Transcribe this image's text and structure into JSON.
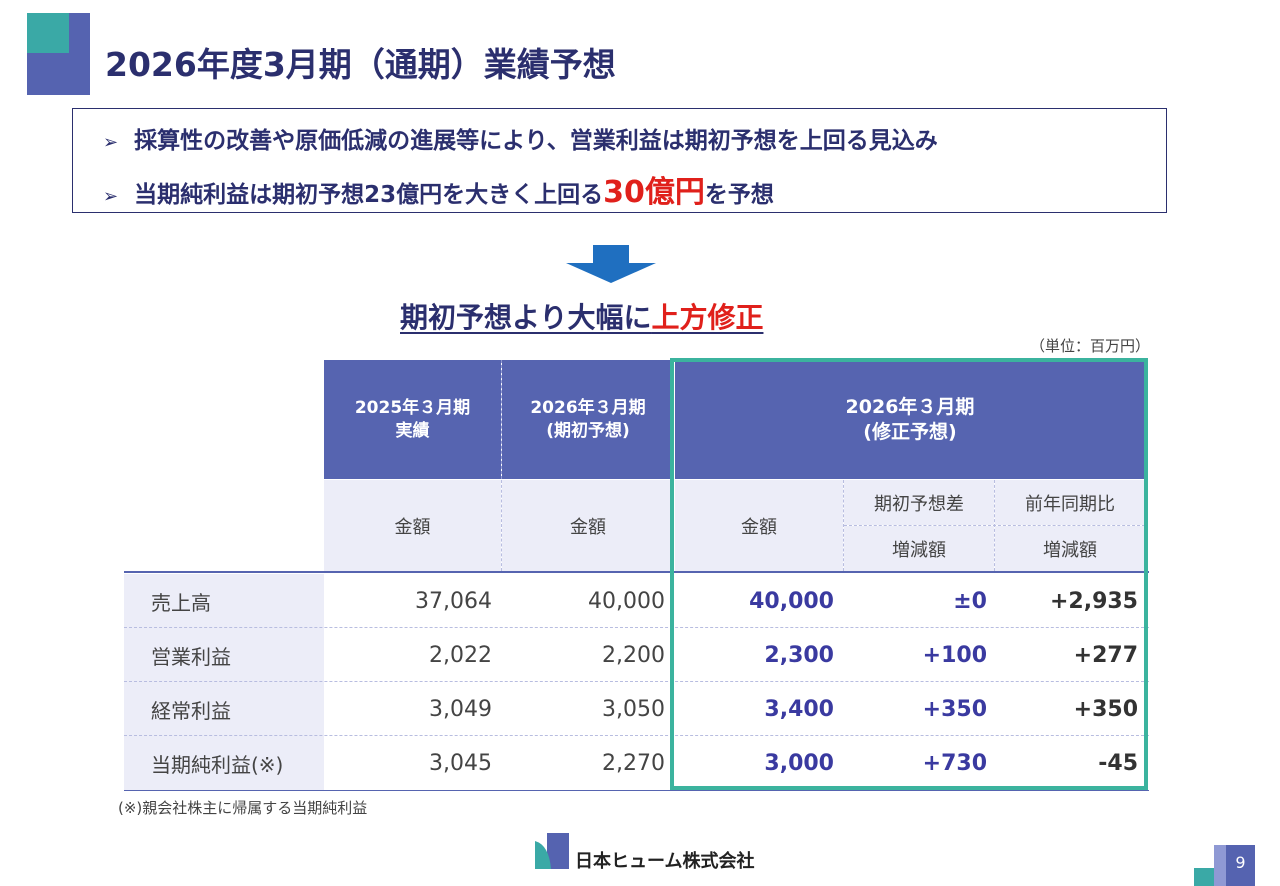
{
  "title": "2026年度3月期（通期）業績予想",
  "summary": {
    "bullet1": "採算性の改善や原価低減の進展等により、営業利益は期初予想を上回る見込み",
    "bullet2_pre": "当期純利益は期初予想23億円を大きく上回る",
    "bullet2_em": "30億円",
    "bullet2_post": "を予想"
  },
  "subheading": {
    "pre": "期初予想より大幅に",
    "em": "上方修正"
  },
  "unit_note": "（単位：百万円）",
  "table": {
    "headers": {
      "actual": [
        "2025年３月期",
        "実績"
      ],
      "initial": [
        "2026年３月期",
        "(期初予想)"
      ],
      "revised": [
        "2026年３月期",
        "(修正予想)"
      ]
    },
    "subheaders": {
      "amount": "金額",
      "diff_initial": "期初予想差",
      "yoy": "前年同期比",
      "change": "増減額"
    },
    "rows": [
      {
        "label": "売上高",
        "actual": "37,064",
        "initial": "40,000",
        "revised": "40,000",
        "diff": "±0",
        "yoy": "+2,935"
      },
      {
        "label": "営業利益",
        "actual": "2,022",
        "initial": "2,200",
        "revised": "2,300",
        "diff": "+100",
        "yoy": "+277"
      },
      {
        "label": "経常利益",
        "actual": "3,049",
        "initial": "3,050",
        "revised": "3,400",
        "diff": "+350",
        "yoy": "+350"
      },
      {
        "label": "当期純利益(※)",
        "actual": "3,045",
        "initial": "2,270",
        "revised": "3,000",
        "diff": "+730",
        "yoy": "-45"
      }
    ]
  },
  "footnote": "(※)親会社株主に帰属する当期純利益",
  "footer": {
    "company": "日本ヒューム株式会社",
    "page": "9"
  },
  "colors": {
    "navy": "#2b2f6e",
    "header_blue": "#5664b0",
    "accent_red": "#e0201b",
    "highlight_teal": "#3bb39e"
  }
}
